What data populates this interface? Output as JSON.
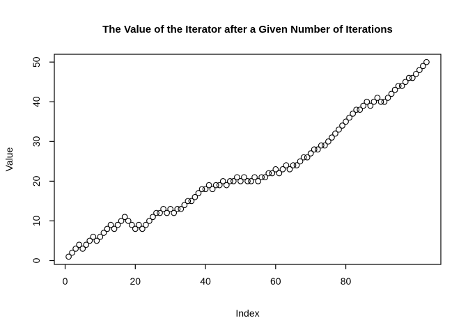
{
  "page": {
    "background_color": "#ffffff",
    "foreground_color": "#000000"
  },
  "chart_data": {
    "type": "scatter",
    "title": "The Value of the Iterator after a Given Number of Iterations",
    "xlabel": "Index",
    "ylabel": "Value",
    "point_style": "open-circle",
    "point_color": "#000000",
    "grid": false,
    "legend": "none",
    "x_ticks": [
      0,
      20,
      40,
      60,
      80
    ],
    "y_ticks": [
      0,
      10,
      20,
      30,
      40,
      50
    ],
    "x_range_data": [
      1,
      103
    ],
    "y_range_data": [
      1,
      50
    ],
    "axis_expansion": 0.04,
    "x": [
      1,
      2,
      3,
      4,
      5,
      6,
      7,
      8,
      9,
      10,
      11,
      12,
      13,
      14,
      15,
      16,
      17,
      18,
      19,
      20,
      21,
      22,
      23,
      24,
      25,
      26,
      27,
      28,
      29,
      30,
      31,
      32,
      33,
      34,
      35,
      36,
      37,
      38,
      39,
      40,
      41,
      42,
      43,
      44,
      45,
      46,
      47,
      48,
      49,
      50,
      51,
      52,
      53,
      54,
      55,
      56,
      57,
      58,
      59,
      60,
      61,
      62,
      63,
      64,
      65,
      66,
      67,
      68,
      69,
      70,
      71,
      72,
      73,
      74,
      75,
      76,
      77,
      78,
      79,
      80,
      81,
      82,
      83,
      84,
      85,
      86,
      87,
      88,
      89,
      90,
      91,
      92,
      93,
      94,
      95,
      96,
      97,
      98,
      99,
      100,
      101,
      102,
      103
    ],
    "values": [
      1,
      2,
      3,
      4,
      3,
      4,
      5,
      6,
      5,
      6,
      7,
      8,
      9,
      8,
      9,
      10,
      11,
      10,
      9,
      8,
      9,
      8,
      9,
      10,
      11,
      12,
      12,
      13,
      12,
      13,
      12,
      13,
      13,
      14,
      15,
      15,
      16,
      17,
      18,
      18,
      19,
      18,
      19,
      19,
      20,
      19,
      20,
      20,
      21,
      20,
      21,
      20,
      20,
      21,
      20,
      21,
      21,
      22,
      22,
      23,
      22,
      23,
      24,
      23,
      24,
      24,
      25,
      26,
      26,
      27,
      28,
      28,
      29,
      29,
      30,
      31,
      32,
      33,
      34,
      35,
      36,
      37,
      38,
      38,
      39,
      40,
      39,
      40,
      41,
      40,
      40,
      41,
      42,
      43,
      44,
      44,
      45,
      46,
      46,
      47,
      48,
      49,
      50
    ]
  }
}
